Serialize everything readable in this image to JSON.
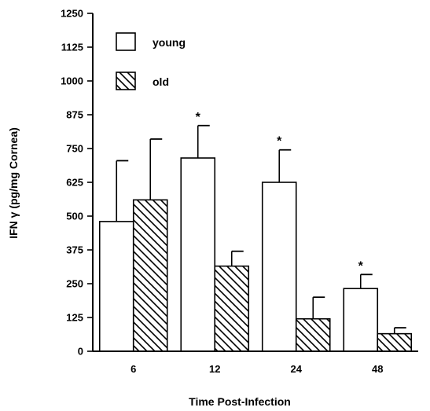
{
  "chart_data": {
    "type": "bar",
    "xlabel": "Time Post-Infection",
    "ylabel": "IFN γ (pg/mg Cornea)",
    "ylim": [
      0,
      1250
    ],
    "yticks": [
      0,
      125,
      250,
      375,
      500,
      625,
      750,
      875,
      1000,
      1125,
      1250
    ],
    "categories": [
      "6",
      "12",
      "24",
      "48"
    ],
    "series": [
      {
        "name": "young",
        "fill": "plain",
        "values": [
          480,
          715,
          625,
          232
        ],
        "errors": [
          225,
          120,
          120,
          52
        ]
      },
      {
        "name": "old",
        "fill": "hatched",
        "values": [
          560,
          315,
          120,
          65
        ],
        "errors": [
          225,
          55,
          80,
          22
        ]
      }
    ],
    "significance": [
      "",
      "*",
      "*",
      "*"
    ],
    "significance_series": "young",
    "legend": {
      "placement": "top-left"
    },
    "grid": false
  },
  "colors": {
    "ink": "#000000",
    "background": "#ffffff"
  }
}
